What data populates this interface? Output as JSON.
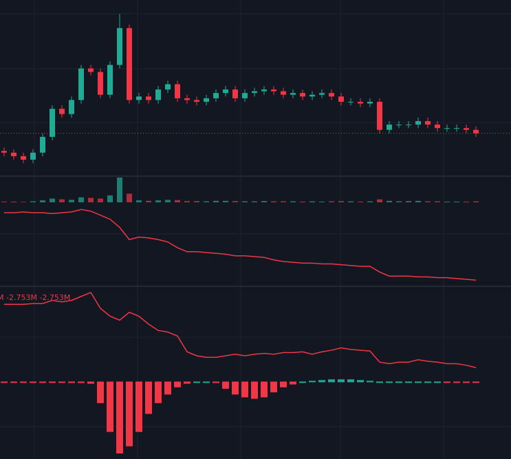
{
  "chart_data": [
    {
      "type": "candlestick",
      "up_color": "#22ab94",
      "down_color": "#f23645",
      "ylim": [
        0,
        100
      ],
      "price_line": true,
      "series": [
        {
          "name": "open",
          "values": [
            14,
            13,
            11,
            9,
            13,
            22,
            38,
            35,
            43,
            61,
            59,
            46,
            63,
            84,
            43,
            45,
            43,
            49,
            52,
            44,
            43,
            42,
            44,
            47,
            49,
            44,
            47,
            48,
            49,
            48,
            46,
            47,
            45,
            46,
            47,
            45,
            42,
            42,
            41,
            42,
            26,
            29,
            29,
            29,
            31,
            29,
            27,
            27,
            27,
            26
          ]
        },
        {
          "name": "high",
          "values": [
            16,
            15,
            13,
            15,
            24,
            40,
            40,
            45,
            63,
            63,
            61,
            65,
            92,
            86,
            47,
            47,
            51,
            54,
            54,
            46,
            45,
            46,
            49,
            51,
            51,
            49,
            50,
            51,
            51,
            50,
            49,
            49,
            48,
            49,
            49,
            47,
            44,
            44,
            44,
            44,
            31,
            31,
            31,
            33,
            33,
            31,
            29,
            29,
            29,
            28
          ]
        },
        {
          "name": "low",
          "values": [
            11,
            9,
            7,
            7,
            11,
            20,
            33,
            33,
            41,
            57,
            44,
            44,
            61,
            41,
            41,
            41,
            41,
            47,
            42,
            41,
            40,
            40,
            42,
            45,
            42,
            42,
            45,
            46,
            46,
            44,
            44,
            43,
            43,
            44,
            43,
            40,
            40,
            39,
            39,
            24,
            24,
            27,
            27,
            27,
            27,
            25,
            25,
            25,
            24,
            22
          ]
        },
        {
          "name": "close",
          "values": [
            13,
            11,
            9,
            13,
            22,
            38,
            35,
            43,
            61,
            59,
            46,
            63,
            84,
            43,
            45,
            43,
            49,
            52,
            44,
            43,
            42,
            44,
            47,
            49,
            44,
            47,
            48,
            49,
            48,
            46,
            47,
            45,
            46,
            47,
            45,
            42,
            42,
            41,
            42,
            26,
            29,
            29,
            29,
            31,
            29,
            27,
            27,
            27,
            26,
            24
          ]
        }
      ]
    },
    {
      "type": "bar",
      "ylim": [
        0,
        100
      ],
      "values": [
        3,
        3,
        2,
        4,
        8,
        15,
        12,
        10,
        20,
        18,
        15,
        28,
        100,
        35,
        8,
        6,
        8,
        10,
        9,
        5,
        5,
        4,
        6,
        6,
        5,
        4,
        4,
        5,
        4,
        4,
        4,
        3,
        4,
        3,
        4,
        5,
        4,
        3,
        4,
        12,
        6,
        4,
        5,
        6,
        4,
        4,
        3,
        3,
        3,
        4
      ]
    },
    {
      "type": "line",
      "color": "#f23645",
      "ylim": [
        0,
        100
      ],
      "values": [
        88,
        88,
        89,
        88,
        88,
        87,
        88,
        89,
        92,
        90,
        85,
        80,
        70,
        55,
        58,
        57,
        55,
        52,
        45,
        40,
        40,
        39,
        38,
        37,
        35,
        35,
        34,
        33,
        30,
        28,
        27,
        26,
        26,
        25,
        25,
        24,
        23,
        22,
        22,
        15,
        10,
        10,
        10,
        9,
        9,
        8,
        8,
        7,
        6,
        5
      ]
    },
    {
      "type": "line",
      "color": "#f23645",
      "legend": "M -2.753M -2.753M",
      "ylim": [
        0,
        100
      ],
      "values": [
        85,
        85,
        85,
        86,
        86,
        90,
        88,
        90,
        95,
        100,
        80,
        70,
        65,
        75,
        70,
        60,
        52,
        50,
        45,
        25,
        20,
        18,
        18,
        20,
        22,
        20,
        22,
        23,
        22,
        24,
        24,
        25,
        22,
        25,
        27,
        30,
        28,
        27,
        26,
        12,
        10,
        12,
        12,
        15,
        13,
        12,
        10,
        10,
        8,
        5
      ]
    },
    {
      "type": "histogram",
      "up_color": "#22ab94",
      "down_color": "#f23645",
      "ylim": [
        -100,
        10
      ],
      "values": [
        -1,
        -1,
        -1,
        -1,
        -1,
        -1,
        -1,
        -2,
        -2,
        -3,
        -30,
        -70,
        -100,
        -90,
        -70,
        -45,
        -30,
        -18,
        -8,
        -3,
        0,
        0,
        -2,
        -10,
        -18,
        -22,
        -24,
        -22,
        -15,
        -8,
        -4,
        0,
        2,
        3,
        4,
        4,
        4,
        3,
        2,
        1,
        1,
        1,
        1,
        1,
        1,
        0,
        -1,
        -1,
        -1,
        -1
      ]
    }
  ]
}
